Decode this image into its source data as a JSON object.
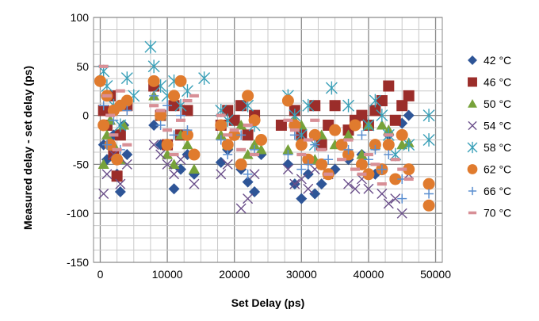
{
  "chart_data": {
    "type": "scatter",
    "title": "",
    "xlabel": "Set Delay (ps)",
    "ylabel": "Measured delay - set delay (ps)",
    "xlim": [
      -1000,
      51000
    ],
    "ylim": [
      -150,
      100
    ],
    "x_ticks": [
      0,
      10000,
      20000,
      30000,
      40000,
      50000
    ],
    "x_tick_labels": [
      "0",
      "10000",
      "20000",
      "30000",
      "40000",
      "50000"
    ],
    "y_ticks": [
      -150,
      -100,
      -50,
      0,
      50,
      100
    ],
    "y_tick_labels": [
      "-150",
      "-100",
      "-50",
      "0",
      "50",
      "100"
    ],
    "grid": true,
    "legend_position": "right",
    "series": [
      {
        "name": "42 °C",
        "marker": "diamond",
        "color": "#2e5597",
        "points": [
          [
            500,
            -30
          ],
          [
            1000,
            -45
          ],
          [
            2000,
            -20
          ],
          [
            2500,
            -60
          ],
          [
            3000,
            -78
          ],
          [
            3500,
            -10
          ],
          [
            4000,
            -40
          ],
          [
            8000,
            -10
          ],
          [
            9000,
            -30
          ],
          [
            11000,
            -75
          ],
          [
            12000,
            -55
          ],
          [
            13000,
            -40
          ],
          [
            14000,
            -60
          ],
          [
            18000,
            -48
          ],
          [
            19000,
            -35
          ],
          [
            21000,
            -55
          ],
          [
            22000,
            -68
          ],
          [
            23000,
            -78
          ],
          [
            24000,
            -40
          ],
          [
            28000,
            -50
          ],
          [
            29000,
            -70
          ],
          [
            30000,
            -85
          ],
          [
            31000,
            -60
          ],
          [
            32000,
            -80
          ],
          [
            33000,
            -70
          ],
          [
            35000,
            -55
          ],
          [
            37000,
            -45
          ],
          [
            39000,
            -40
          ],
          [
            41000,
            -60
          ],
          [
            43000,
            -20
          ],
          [
            45000,
            -8
          ],
          [
            46000,
            0
          ]
        ]
      },
      {
        "name": "46 °C",
        "marker": "square",
        "color": "#9b2d2a",
        "points": [
          [
            500,
            5
          ],
          [
            1000,
            -10
          ],
          [
            1500,
            20
          ],
          [
            2000,
            -40
          ],
          [
            2500,
            -62
          ],
          [
            3000,
            -20
          ],
          [
            4000,
            10
          ],
          [
            8000,
            30
          ],
          [
            9000,
            0
          ],
          [
            10000,
            -30
          ],
          [
            11000,
            10
          ],
          [
            12000,
            -20
          ],
          [
            13000,
            5
          ],
          [
            18000,
            -10
          ],
          [
            19000,
            5
          ],
          [
            20000,
            -5
          ],
          [
            21000,
            10
          ],
          [
            22000,
            -20
          ],
          [
            23000,
            0
          ],
          [
            27000,
            -10
          ],
          [
            29000,
            5
          ],
          [
            30000,
            -20
          ],
          [
            32000,
            10
          ],
          [
            33000,
            -30
          ],
          [
            34000,
            -10
          ],
          [
            35000,
            10
          ],
          [
            37000,
            -15
          ],
          [
            38000,
            -5
          ],
          [
            39000,
            0
          ],
          [
            40000,
            -10
          ],
          [
            41000,
            5
          ],
          [
            42000,
            15
          ],
          [
            43000,
            30
          ],
          [
            44000,
            -5
          ],
          [
            45000,
            10
          ],
          [
            46000,
            20
          ]
        ]
      },
      {
        "name": "50 °C",
        "marker": "triangle",
        "color": "#77a23a",
        "points": [
          [
            500,
            -50
          ],
          [
            1000,
            -20
          ],
          [
            1500,
            -5
          ],
          [
            2000,
            -30
          ],
          [
            3000,
            -45
          ],
          [
            3500,
            -10
          ],
          [
            8000,
            20
          ],
          [
            9000,
            0
          ],
          [
            10000,
            -40
          ],
          [
            11000,
            -50
          ],
          [
            12000,
            -20
          ],
          [
            13000,
            -30
          ],
          [
            14000,
            -55
          ],
          [
            18000,
            -20
          ],
          [
            19000,
            -30
          ],
          [
            21000,
            -10
          ],
          [
            22000,
            -40
          ],
          [
            23000,
            -30
          ],
          [
            24000,
            -35
          ],
          [
            28000,
            -35
          ],
          [
            29000,
            -5
          ],
          [
            30000,
            -10
          ],
          [
            32000,
            -45
          ],
          [
            33000,
            -20
          ],
          [
            35000,
            -30
          ],
          [
            37000,
            -20
          ],
          [
            39000,
            -40
          ],
          [
            40000,
            -10
          ],
          [
            41000,
            -30
          ],
          [
            42000,
            -10
          ],
          [
            43000,
            -15
          ],
          [
            45000,
            -30
          ],
          [
            46000,
            -28
          ]
        ]
      },
      {
        "name": "54 °C",
        "marker": "x",
        "color": "#6a4e8a",
        "points": [
          [
            500,
            -80
          ],
          [
            1000,
            -60
          ],
          [
            2000,
            -40
          ],
          [
            3000,
            -70
          ],
          [
            4000,
            -50
          ],
          [
            8000,
            -30
          ],
          [
            9000,
            -40
          ],
          [
            10000,
            -50
          ],
          [
            11000,
            -60
          ],
          [
            12000,
            -45
          ],
          [
            14000,
            -70
          ],
          [
            18000,
            -60
          ],
          [
            19000,
            -50
          ],
          [
            21000,
            -95
          ],
          [
            22000,
            -85
          ],
          [
            23000,
            -60
          ],
          [
            28000,
            -55
          ],
          [
            29000,
            -70
          ],
          [
            30000,
            -65
          ],
          [
            31000,
            -75
          ],
          [
            32000,
            -55
          ],
          [
            34000,
            -60
          ],
          [
            37000,
            -70
          ],
          [
            38000,
            -75
          ],
          [
            39000,
            -65
          ],
          [
            40000,
            -75
          ],
          [
            42000,
            -80
          ],
          [
            43000,
            -90
          ],
          [
            44000,
            -85
          ],
          [
            45000,
            -100
          ],
          [
            46000,
            -60
          ]
        ]
      },
      {
        "name": "58 °C",
        "marker": "asterisk",
        "color": "#3aa0b8",
        "points": [
          [
            500,
            45
          ],
          [
            1000,
            30
          ],
          [
            2000,
            10
          ],
          [
            3000,
            -10
          ],
          [
            4000,
            38
          ],
          [
            5000,
            20
          ],
          [
            7500,
            70
          ],
          [
            8000,
            50
          ],
          [
            9000,
            30
          ],
          [
            10000,
            20
          ],
          [
            11000,
            35
          ],
          [
            12000,
            10
          ],
          [
            13000,
            25
          ],
          [
            15500,
            38
          ],
          [
            18000,
            5
          ],
          [
            19000,
            -5
          ],
          [
            22000,
            10
          ],
          [
            23000,
            -10
          ],
          [
            28000,
            20
          ],
          [
            29000,
            0
          ],
          [
            30000,
            -20
          ],
          [
            31000,
            10
          ],
          [
            32000,
            -30
          ],
          [
            34500,
            28
          ],
          [
            37000,
            10
          ],
          [
            40000,
            -10
          ],
          [
            41000,
            15
          ],
          [
            42000,
            0
          ],
          [
            43000,
            -20
          ],
          [
            44000,
            -40
          ],
          [
            46000,
            -30
          ],
          [
            49000,
            0
          ],
          [
            49000,
            -25
          ]
        ]
      },
      {
        "name": "62 °C",
        "marker": "circle",
        "color": "#e07b2e",
        "points": [
          [
            0,
            35
          ],
          [
            500,
            -10
          ],
          [
            1000,
            20
          ],
          [
            1500,
            -30
          ],
          [
            2000,
            5
          ],
          [
            2500,
            -45
          ],
          [
            3000,
            10
          ],
          [
            4000,
            15
          ],
          [
            8000,
            35
          ],
          [
            9000,
            0
          ],
          [
            10000,
            -30
          ],
          [
            11000,
            20
          ],
          [
            12000,
            35
          ],
          [
            13000,
            -20
          ],
          [
            14000,
            -40
          ],
          [
            18000,
            -10
          ],
          [
            19000,
            -30
          ],
          [
            20000,
            -20
          ],
          [
            21000,
            -50
          ],
          [
            22000,
            20
          ],
          [
            23000,
            -5
          ],
          [
            24000,
            -25
          ],
          [
            28000,
            15
          ],
          [
            29000,
            -10
          ],
          [
            30000,
            -30
          ],
          [
            31000,
            -45
          ],
          [
            32000,
            -20
          ],
          [
            33000,
            -50
          ],
          [
            34000,
            -60
          ],
          [
            35000,
            -15
          ],
          [
            36000,
            -30
          ],
          [
            37000,
            -40
          ],
          [
            38000,
            -10
          ],
          [
            39000,
            -50
          ],
          [
            40000,
            -60
          ],
          [
            41000,
            -30
          ],
          [
            42000,
            -55
          ],
          [
            43000,
            -30
          ],
          [
            44000,
            -65
          ],
          [
            45000,
            -20
          ],
          [
            46000,
            -55
          ],
          [
            49000,
            -70
          ],
          [
            49000,
            -92
          ]
        ]
      },
      {
        "name": "66 °C",
        "marker": "plus",
        "color": "#5b8fd0",
        "points": [
          [
            500,
            10
          ],
          [
            1000,
            -30
          ],
          [
            2000,
            -5
          ],
          [
            3000,
            -35
          ],
          [
            4000,
            5
          ],
          [
            8000,
            20
          ],
          [
            9000,
            -10
          ],
          [
            10000,
            10
          ],
          [
            11000,
            -20
          ],
          [
            12000,
            0
          ],
          [
            13000,
            -15
          ],
          [
            18000,
            -25
          ],
          [
            19000,
            -40
          ],
          [
            21000,
            -20
          ],
          [
            22000,
            -60
          ],
          [
            23000,
            -35
          ],
          [
            28000,
            -40
          ],
          [
            29000,
            -20
          ],
          [
            30000,
            -55
          ],
          [
            31000,
            -50
          ],
          [
            32000,
            -30
          ],
          [
            34000,
            -45
          ],
          [
            37000,
            -35
          ],
          [
            39000,
            -20
          ],
          [
            40000,
            -45
          ],
          [
            41000,
            -35
          ],
          [
            42000,
            -55
          ],
          [
            43000,
            -40
          ],
          [
            45000,
            -65
          ],
          [
            45000,
            -85
          ],
          [
            49000,
            -80
          ]
        ]
      },
      {
        "name": "70 °C",
        "marker": "dash",
        "color": "#d88f96",
        "points": [
          [
            500,
            50
          ],
          [
            1000,
            20
          ],
          [
            1500,
            0
          ],
          [
            2000,
            -20
          ],
          [
            2500,
            -35
          ],
          [
            3000,
            25
          ],
          [
            4000,
            -30
          ],
          [
            8000,
            10
          ],
          [
            9000,
            5
          ],
          [
            10000,
            -15
          ],
          [
            11000,
            -40
          ],
          [
            12000,
            -5
          ],
          [
            13000,
            15
          ],
          [
            14000,
            20
          ],
          [
            18000,
            0
          ],
          [
            19000,
            -20
          ],
          [
            20000,
            -15
          ],
          [
            21000,
            -35
          ],
          [
            22000,
            -10
          ],
          [
            23000,
            -40
          ],
          [
            28000,
            -5
          ],
          [
            29000,
            -15
          ],
          [
            30000,
            -40
          ],
          [
            31000,
            -25
          ],
          [
            32000,
            -5
          ],
          [
            33000,
            -35
          ],
          [
            34000,
            -60
          ],
          [
            36000,
            -45
          ],
          [
            37000,
            -25
          ],
          [
            38000,
            -55
          ],
          [
            39000,
            -60
          ],
          [
            40000,
            -40
          ],
          [
            41000,
            -50
          ],
          [
            42000,
            -70
          ],
          [
            43000,
            -20
          ],
          [
            44000,
            -45
          ],
          [
            45000,
            -55
          ],
          [
            46000,
            -65
          ]
        ]
      }
    ]
  }
}
